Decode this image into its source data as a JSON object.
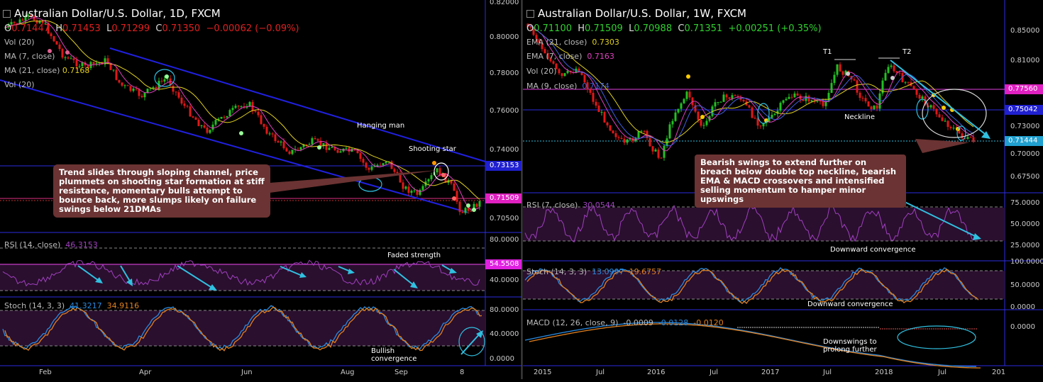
{
  "left": {
    "title": "Australian Dollar/U.S. Dollar, 1D, FXCM",
    "ohlc": {
      "o": "O",
      "o_val": "0.71447",
      "h": "H",
      "h_val": "0.71453",
      "l": "L",
      "l_val": "0.71299",
      "c": "C",
      "c_val": "0.71350",
      "chg": "−0.00062 (−0.09%)"
    },
    "legend": [
      "Vol (20)",
      "MA (7, close)",
      "MA (21, close)",
      "Vol (20)"
    ],
    "legend_vals": [
      "",
      "",
      "0.7168",
      ""
    ],
    "price_ticks": [
      "0.82000",
      "0.80000",
      "0.78000",
      "0.76000",
      "0.74000",
      "0.73153",
      "0.71509",
      "0.70500"
    ],
    "price_badges": {
      "blue": "0.73153",
      "magenta": "0.71509"
    },
    "annotations": {
      "hanging_man": "Hanging man",
      "shooting_star": "Shooting star",
      "faded_strength": "Faded strength",
      "bullish_conv": "Bullish convergence"
    },
    "callout": "Trend slides through sloping channel, price plummets on shooting star formation at stiff resistance, momentary bulls attempt to bounce back, more slumps likely on failure swings below 21DMAs",
    "rsi": {
      "label": "RSI (14, close)",
      "value": "46.3153",
      "ticks": [
        "80.0000",
        "40.0000"
      ],
      "badge": "54.5508"
    },
    "stoch": {
      "label": "Stoch (14, 3, 3)",
      "k": "41.3217",
      "d": "34.9116",
      "ticks": [
        "80.0000",
        "40.0000",
        "0.0000"
      ]
    },
    "xaxis": [
      "Feb",
      "Apr",
      "Jun",
      "Aug",
      "Sep",
      "8"
    ]
  },
  "right": {
    "title": "Australian Dollar/U.S. Dollar, 1W, FXCM",
    "ohlc": {
      "o": "O",
      "o_val": "0.71100",
      "h": "H",
      "h_val": "0.71509",
      "l": "L",
      "l_val": "0.70988",
      "c": "C",
      "c_val": "0.71351",
      "chg": "+0.00251 (+0.35%)"
    },
    "legend": [
      "EMA (21, close)",
      "EMA (7, close)",
      "Vol (20)",
      "MA (9, close)"
    ],
    "legend_vals": [
      "0.7303",
      "0.7163",
      "",
      "0.7174"
    ],
    "price_ticks": [
      "0.85000",
      "0.81000",
      "0.77560",
      "0.75042",
      "0.73000",
      "0.71444",
      "0.70000",
      "0.67500"
    ],
    "price_badges": {
      "magenta": "0.77560",
      "blue": "0.75042",
      "cyan": "0.71444"
    },
    "annotations": {
      "t1": "T1",
      "t2": "T2",
      "neckline": "Neckline",
      "down_conv1": "Downward convergence",
      "down_conv2": "Downward convergence",
      "downswings": "Downswings to prolong further"
    },
    "callout": "Bearish swings to extend further on breach below double top neckline, bearish EMA & MACD crossovers and intensified selling momentum to hamper minor upswings",
    "rsi": {
      "label": "RSI (7, close)",
      "value": "30.0544",
      "ticks": [
        "75.0000",
        "50.0000",
        "25.0000"
      ]
    },
    "stoch": {
      "label": "Stoch (14, 3, 3)",
      "k": "13.0997",
      "d": "19.6757",
      "ticks": [
        "100.0000",
        "50.0000",
        "0.0000"
      ]
    },
    "macd": {
      "label": "MACD (12, 26, close, 9)",
      "v1": "-0.0009",
      "v2": "-0.0128",
      "v3": "-0.0120",
      "ticks": [
        "0.0000"
      ]
    },
    "xaxis": [
      "2015",
      "Jul",
      "2016",
      "Jul",
      "2017",
      "Jul",
      "2018",
      "Jul",
      "201"
    ]
  },
  "colors": {
    "up": "#22c022",
    "down": "#e01818",
    "ma_yellow": "#e0d020",
    "ma_pink": "#e040c0",
    "channel": "#2020e0",
    "callout_bg": "#6b3333",
    "rsi": "#a040c0",
    "stoch_k": "#2a8ae0",
    "stoch_d": "#e08020",
    "arrow": "#30c0e0"
  }
}
